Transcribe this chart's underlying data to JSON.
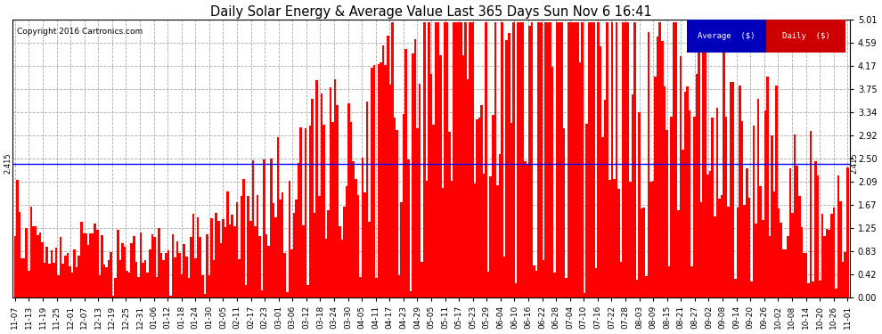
{
  "title": "Daily Solar Energy & Average Value Last 365 Days Sun Nov 6 16:41",
  "copyright": "Copyright 2016 Cartronics.com",
  "average_value": 2.415,
  "bar_color": "#FF0000",
  "average_line_color": "#0000FF",
  "background_color": "#FFFFFF",
  "yticks": [
    0.0,
    0.42,
    0.83,
    1.25,
    1.67,
    2.09,
    2.5,
    2.92,
    3.34,
    3.75,
    4.17,
    4.59,
    5.01
  ],
  "ymax": 5.01,
  "ymin": 0.0,
  "legend_avg_color": "#0000BB",
  "legend_daily_color": "#CC0000",
  "legend_avg_text": "Average  ($)",
  "legend_daily_text": "Daily  ($)",
  "xtick_labels": [
    "11-07",
    "11-13",
    "11-19",
    "11-25",
    "12-01",
    "12-07",
    "12-13",
    "12-19",
    "12-25",
    "12-31",
    "01-06",
    "01-12",
    "01-18",
    "01-24",
    "01-30",
    "02-05",
    "02-11",
    "02-17",
    "02-23",
    "03-01",
    "03-06",
    "03-12",
    "03-18",
    "03-24",
    "03-30",
    "04-05",
    "04-11",
    "04-17",
    "04-23",
    "04-29",
    "05-05",
    "05-11",
    "05-17",
    "05-23",
    "05-29",
    "06-04",
    "06-10",
    "06-16",
    "06-22",
    "06-28",
    "07-04",
    "07-10",
    "07-16",
    "07-22",
    "07-28",
    "08-03",
    "08-09",
    "08-15",
    "08-21",
    "08-27",
    "09-02",
    "09-08",
    "09-14",
    "09-20",
    "09-26",
    "10-02",
    "10-08",
    "10-14",
    "10-20",
    "10-26",
    "11-01"
  ],
  "num_bars": 365
}
